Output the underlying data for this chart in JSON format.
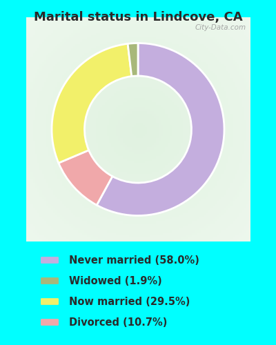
{
  "title": "Marital status in Lindcove, CA",
  "title_fontsize": 13,
  "title_color": "#2a2a2a",
  "background_color_outer": "#00ffff",
  "background_color_chart": "#d8eedc",
  "slices": [
    {
      "label": "Never married (58.0%)",
      "value": 58.0,
      "color": "#c4aede"
    },
    {
      "label": "Widowed (1.9%)",
      "value": 1.9,
      "color": "#a8b87a"
    },
    {
      "label": "Now married (29.5%)",
      "value": 29.5,
      "color": "#f2f06a"
    },
    {
      "label": "Divorced (10.7%)",
      "value": 10.7,
      "color": "#f0a8aa"
    }
  ],
  "donut_width": 0.38,
  "legend_fontsize": 10.5,
  "legend_text_color": "#2a2a2a",
  "watermark": "City-Data.com"
}
